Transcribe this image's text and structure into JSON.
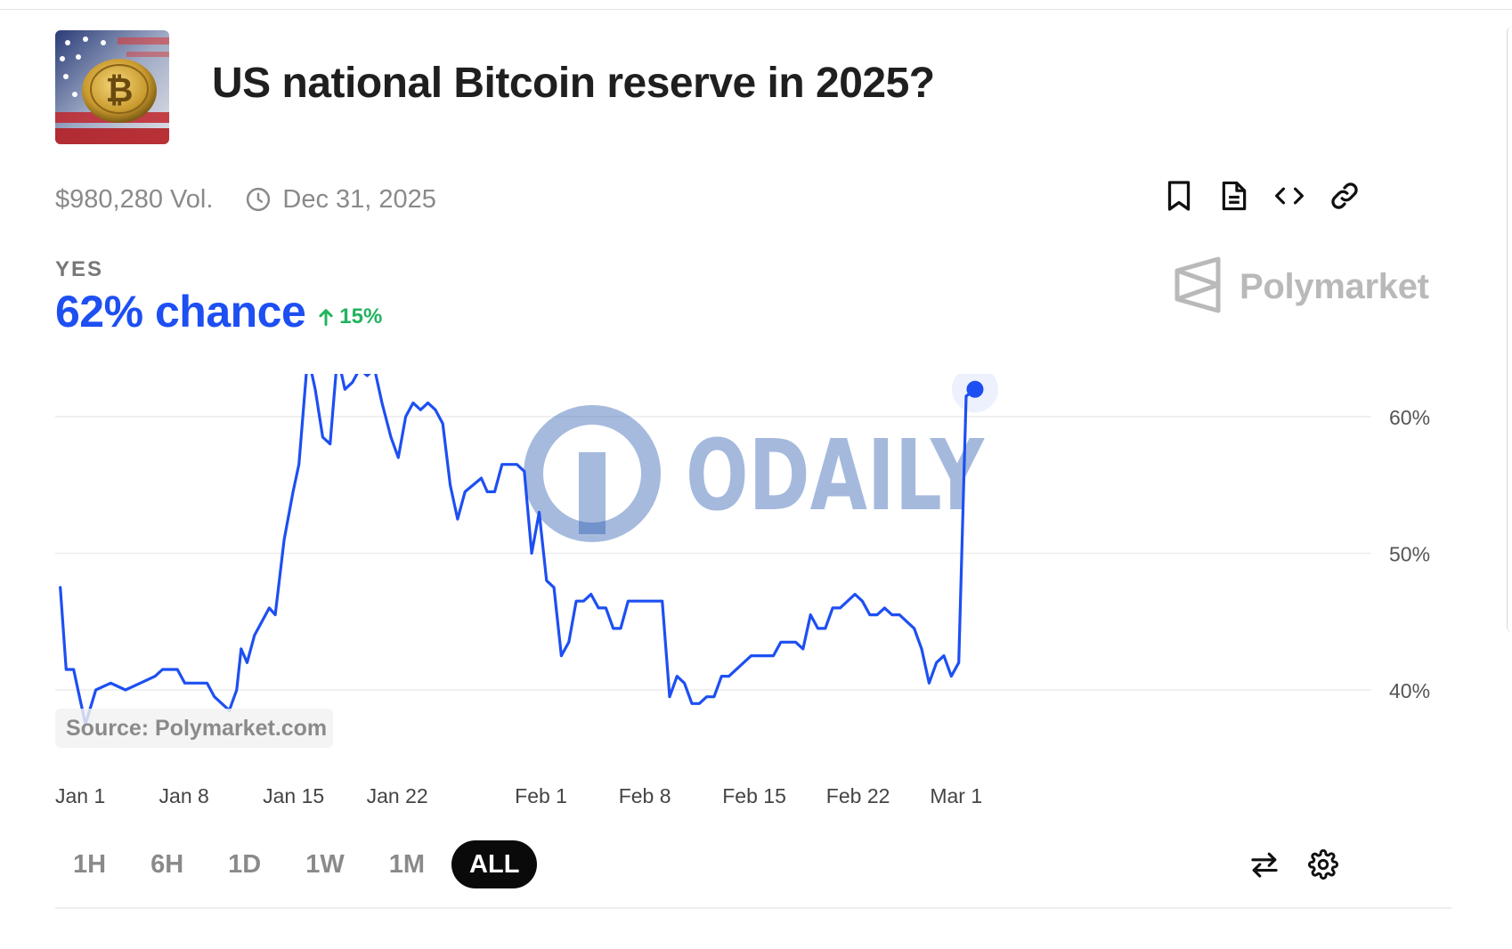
{
  "market": {
    "title": "US national Bitcoin reserve in 2025?",
    "volume": "$980,280 Vol.",
    "end_date": "Dec 31, 2025"
  },
  "outcome": {
    "label": "YES",
    "chance": "62% chance",
    "change": "15%"
  },
  "brand": {
    "name": "Polymarket"
  },
  "watermark": {
    "text": "ODAILY"
  },
  "source": "Source: Polymarket.com",
  "actions": [
    "bookmark-icon",
    "document-icon",
    "embed-icon",
    "link-icon"
  ],
  "timeframes": [
    "1H",
    "6H",
    "1D",
    "1W",
    "1M",
    "ALL"
  ],
  "active_timeframe": "ALL",
  "colors": {
    "line": "#1d4ff2",
    "up": "#22b35e",
    "watermark": "#2a5bb0"
  },
  "chart_data": {
    "type": "line",
    "x_labels": [
      {
        "label": "Jan 1",
        "day": 0
      },
      {
        "label": "Jan 8",
        "day": 7
      },
      {
        "label": "Jan 15",
        "day": 14
      },
      {
        "label": "Jan 22",
        "day": 21
      },
      {
        "label": "Feb 1",
        "day": 31
      },
      {
        "label": "Feb 8",
        "day": 38
      },
      {
        "label": "Feb 15",
        "day": 45
      },
      {
        "label": "Feb 22",
        "day": 52
      },
      {
        "label": "Mar 1",
        "day": 59
      }
    ],
    "y_ticks": [
      40,
      50,
      60
    ],
    "y_tick_labels": [
      "40%",
      "50%",
      "60%"
    ],
    "ylim": [
      36,
      67
    ],
    "grid": true,
    "series": [
      {
        "points": [
          [
            0.1,
            47.5
          ],
          [
            0.5,
            41.5
          ],
          [
            1.0,
            41.5
          ],
          [
            1.3,
            40
          ],
          [
            1.8,
            37.5
          ],
          [
            2.5,
            40
          ],
          [
            3.5,
            40.5
          ],
          [
            4.5,
            40
          ],
          [
            5.5,
            40.5
          ],
          [
            6.5,
            41
          ],
          [
            7.0,
            41.5
          ],
          [
            8.0,
            41.5
          ],
          [
            8.5,
            40.5
          ],
          [
            10.0,
            40.5
          ],
          [
            10.5,
            39.5
          ],
          [
            11.5,
            38.5
          ],
          [
            12.0,
            40
          ],
          [
            12.3,
            43
          ],
          [
            12.7,
            42
          ],
          [
            13.2,
            44
          ],
          [
            14.2,
            46
          ],
          [
            14.6,
            45.5
          ],
          [
            15.2,
            51
          ],
          [
            15.8,
            54.5
          ],
          [
            16.2,
            56.5
          ],
          [
            16.8,
            64.5
          ],
          [
            17.3,
            62
          ],
          [
            17.8,
            58.5
          ],
          [
            18.3,
            58
          ],
          [
            18.8,
            64.5
          ],
          [
            19.3,
            62
          ],
          [
            19.8,
            62.5
          ],
          [
            20.3,
            63.5
          ],
          [
            20.8,
            63
          ],
          [
            21.3,
            63.5
          ],
          [
            21.8,
            61
          ],
          [
            22.4,
            58.5
          ],
          [
            22.9,
            57
          ],
          [
            23.4,
            60
          ],
          [
            23.9,
            61
          ],
          [
            24.4,
            60.5
          ],
          [
            24.9,
            61
          ],
          [
            25.4,
            60.5
          ],
          [
            25.9,
            59.5
          ],
          [
            26.4,
            55
          ],
          [
            26.9,
            52.5
          ],
          [
            27.4,
            54.5
          ],
          [
            28.5,
            55.5
          ],
          [
            28.9,
            54.5
          ],
          [
            29.4,
            54.5
          ],
          [
            29.9,
            56.5
          ],
          [
            30.9,
            56.5
          ],
          [
            31.4,
            56
          ],
          [
            31.9,
            50
          ],
          [
            32.4,
            53
          ],
          [
            32.9,
            48
          ],
          [
            33.4,
            47.5
          ],
          [
            33.9,
            42.5
          ],
          [
            34.4,
            43.5
          ],
          [
            34.9,
            46.5
          ],
          [
            35.4,
            46.5
          ],
          [
            35.9,
            47
          ],
          [
            36.4,
            46
          ],
          [
            36.9,
            46
          ],
          [
            37.4,
            44.5
          ],
          [
            37.9,
            44.5
          ],
          [
            38.4,
            46.5
          ],
          [
            40.7,
            46.5
          ],
          [
            41.2,
            39.5
          ],
          [
            41.7,
            41
          ],
          [
            42.2,
            40.5
          ],
          [
            42.7,
            39
          ],
          [
            43.2,
            39
          ],
          [
            43.7,
            39.5
          ],
          [
            44.2,
            39.5
          ],
          [
            44.7,
            41
          ],
          [
            45.2,
            41
          ],
          [
            46.7,
            42.5
          ],
          [
            48.2,
            42.5
          ],
          [
            48.7,
            43.5
          ],
          [
            49.7,
            43.5
          ],
          [
            50.2,
            43
          ],
          [
            50.7,
            45.5
          ],
          [
            51.2,
            44.5
          ],
          [
            51.7,
            44.5
          ],
          [
            52.2,
            46
          ],
          [
            52.7,
            46
          ],
          [
            53.7,
            47
          ],
          [
            54.2,
            46.5
          ],
          [
            54.7,
            45.5
          ],
          [
            55.2,
            45.5
          ],
          [
            55.7,
            46
          ],
          [
            56.2,
            45.5
          ],
          [
            56.7,
            45.5
          ],
          [
            57.2,
            45
          ],
          [
            57.7,
            44.5
          ],
          [
            58.2,
            43
          ],
          [
            58.7,
            40.5
          ],
          [
            59.2,
            42
          ],
          [
            59.7,
            42.5
          ],
          [
            60.2,
            41
          ],
          [
            60.7,
            42
          ],
          [
            61.2,
            61.5
          ],
          [
            61.8,
            62
          ]
        ]
      }
    ],
    "last_value": 62
  }
}
